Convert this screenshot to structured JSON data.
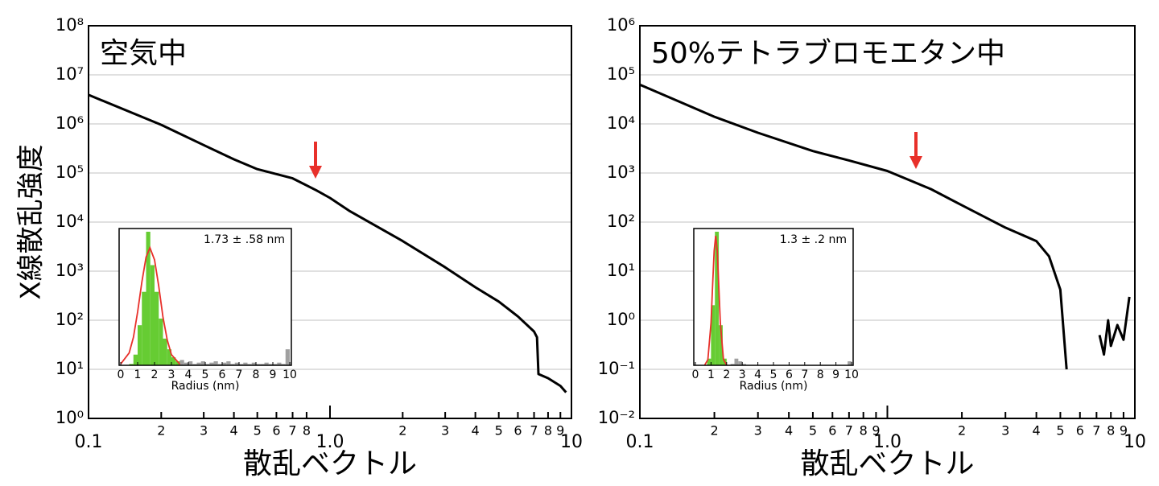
{
  "chart_data": [
    {
      "type": "line",
      "title": "空気中",
      "x_label": "散乱ベクトル",
      "y_label": "X線散乱強度",
      "xscale": "log",
      "yscale": "log",
      "grid": true,
      "xlim": [
        0.1,
        10
      ],
      "ylim": [
        1,
        100000000.0
      ],
      "xticks": [
        0.1,
        {
          "value": 0.2,
          "label": "2"
        },
        {
          "value": 0.3,
          "label": "3"
        },
        {
          "value": 0.4,
          "label": "4"
        },
        {
          "value": 0.5,
          "label": "5"
        },
        {
          "value": 0.6,
          "label": "6"
        },
        {
          "value": 0.7,
          "label": "7"
        },
        {
          "value": 0.8,
          "label": "8"
        },
        {
          "value": 1,
          "label": "1.0"
        },
        {
          "value": 2,
          "label": "2"
        },
        {
          "value": 3,
          "label": "3"
        },
        {
          "value": 4,
          "label": "4"
        },
        {
          "value": 5,
          "label": "5"
        },
        {
          "value": 6,
          "label": "6"
        },
        {
          "value": 7,
          "label": "7"
        },
        {
          "value": 8,
          "label": "8"
        },
        {
          "value": 9,
          "label": "9"
        },
        10
      ],
      "yticks": [
        {
          "value": 1,
          "label": "10⁰"
        },
        {
          "value": 10,
          "label": "10¹"
        },
        {
          "value": 100,
          "label": "10²"
        },
        {
          "value": 1000,
          "label": "10³"
        },
        {
          "value": 10000.0,
          "label": "10⁴"
        },
        {
          "value": 100000.0,
          "label": "10⁵"
        },
        {
          "value": 1000000.0,
          "label": "10⁶"
        },
        {
          "value": 10000000.0,
          "label": "10⁷"
        },
        {
          "value": 100000000.0,
          "label": "10⁸"
        }
      ],
      "series": [
        {
          "color": "#000000",
          "x": [
            0.1,
            0.2,
            0.3,
            0.4,
            0.5,
            0.7,
            0.88,
            1.0,
            1.2,
            2,
            3,
            4,
            5,
            6,
            7,
            7.2,
            7.3,
            8,
            9,
            9.5
          ],
          "values": [
            3900000,
            960000,
            370000,
            190000,
            120000,
            78000,
            44000,
            31000,
            17000,
            4100,
            1200,
            470,
            240,
            120,
            59,
            45,
            8,
            6.6,
            4.6,
            3.4
          ]
        }
      ],
      "inset": {
        "type": "histogram",
        "x_label": "Radius (nm)",
        "annotation": "1.73 ± .58 nm",
        "xlim": [
          0,
          10
        ],
        "ylim": [
          0,
          100
        ],
        "xticks": [
          0,
          1,
          2,
          3,
          4,
          5,
          6,
          7,
          8,
          9,
          10
        ],
        "bins": [
          0,
          0.25,
          0.5,
          0.75,
          1,
          1.25,
          1.5,
          1.75,
          2,
          2.25,
          2.5,
          2.75,
          3,
          3.25,
          3.5,
          3.75,
          4,
          4.25,
          4.5,
          4.75,
          5,
          5.25,
          5.5,
          5.75,
          6,
          6.25,
          6.5,
          6.75,
          7,
          7.25,
          7.5,
          7.75,
          8,
          8.25,
          8.5,
          8.75,
          9,
          9.25,
          9.5,
          9.75,
          10
        ],
        "counts": [
          0,
          0,
          1,
          8,
          30,
          55,
          100,
          75,
          55,
          35,
          20,
          12,
          6,
          3,
          4,
          2,
          3,
          1,
          2,
          3,
          1,
          2,
          3,
          1,
          2,
          3,
          1,
          2,
          1,
          2,
          1,
          2,
          1,
          1,
          2,
          1,
          1,
          2,
          1,
          12
        ],
        "colors": [
          "#66cc33",
          "#66cc33",
          "#66cc33",
          "#66cc33",
          "#66cc33",
          "#66cc33",
          "#66cc33",
          "#66cc33",
          "#66cc33",
          "#66cc33",
          "#66cc33",
          "#66cc33",
          "#66cc33",
          "#66cc33",
          "#a0a0a0",
          "#a0a0a0",
          "#a0a0a0",
          "#a0a0a0",
          "#a0a0a0",
          "#a0a0a0",
          "#a0a0a0",
          "#a0a0a0",
          "#a0a0a0",
          "#a0a0a0",
          "#a0a0a0",
          "#a0a0a0",
          "#a0a0a0",
          "#a0a0a0",
          "#a0a0a0",
          "#a0a0a0",
          "#a0a0a0",
          "#a0a0a0",
          "#a0a0a0",
          "#a0a0a0",
          "#a0a0a0",
          "#a0a0a0",
          "#a0a0a0",
          "#a0a0a0",
          "#a0a0a0",
          "#a0a0a0"
        ],
        "fit": {
          "color": "#e8302a",
          "x": [
            0,
            0.5,
            0.75,
            1,
            1.25,
            1.5,
            1.73,
            2,
            2.25,
            2.5,
            2.75,
            3,
            3.5
          ],
          "values": [
            1,
            9.3,
            21,
            40,
            62.5,
            81,
            88,
            79,
            59,
            36,
            19,
            8,
            0.8
          ]
        }
      }
    },
    {
      "type": "line",
      "title": "50%テトラブロモエタン中",
      "x_label": "散乱ベクトル",
      "xscale": "log",
      "yscale": "log",
      "grid": true,
      "xlim": [
        0.1,
        10
      ],
      "ylim": [
        0.01,
        1000000.0
      ],
      "xticks": [
        0.1,
        {
          "value": 0.2,
          "label": "2"
        },
        {
          "value": 0.3,
          "label": "3"
        },
        {
          "value": 0.4,
          "label": "4"
        },
        {
          "value": 0.5,
          "label": "5"
        },
        {
          "value": 0.6,
          "label": "6"
        },
        {
          "value": 0.7,
          "label": "7"
        },
        {
          "value": 0.8,
          "label": "8"
        },
        {
          "value": 0.9,
          "label": "9"
        },
        {
          "value": 1,
          "label": "1.0"
        },
        {
          "value": 2,
          "label": "2"
        },
        {
          "value": 3,
          "label": "3"
        },
        {
          "value": 4,
          "label": "4"
        },
        {
          "value": 5,
          "label": "5"
        },
        {
          "value": 6,
          "label": "6"
        },
        {
          "value": 7,
          "label": "7"
        },
        {
          "value": 8,
          "label": "8"
        },
        {
          "value": 9,
          "label": "9"
        },
        10
      ],
      "yticks": [
        {
          "value": 0.01,
          "label": "10⁻²"
        },
        {
          "value": 0.1,
          "label": "10⁻¹"
        },
        {
          "value": 1,
          "label": "10⁰"
        },
        {
          "value": 10,
          "label": "10¹"
        },
        {
          "value": 100,
          "label": "10²"
        },
        {
          "value": 1000,
          "label": "10³"
        },
        {
          "value": 10000.0,
          "label": "10⁴"
        },
        {
          "value": 100000.0,
          "label": "10⁵"
        },
        {
          "value": 1000000.0,
          "label": "10⁶"
        }
      ],
      "series": [
        {
          "color": "#000000",
          "x": [
            0.1,
            0.2,
            0.3,
            0.5,
            0.7,
            1.0,
            1.5,
            2,
            3,
            4,
            4.5,
            5,
            5.3,
            6,
            7.2,
            7.5,
            7.8,
            8,
            8.5,
            9,
            9.5
          ],
          "values": [
            63000,
            14000,
            6600,
            2800,
            1800,
            1100,
            470,
            220,
            77,
            41,
            20,
            4.2,
            0.1,
            null,
            0.5,
            0.2,
            1,
            0.3,
            0.8,
            0.4,
            3
          ]
        }
      ],
      "inset": {
        "type": "histogram",
        "x_label": "Radius (nm)",
        "annotation": "1.3 ± .2 nm",
        "xlim": [
          0,
          10
        ],
        "ylim": [
          0,
          100
        ],
        "xticks": [
          0,
          1,
          2,
          3,
          4,
          5,
          6,
          7,
          8,
          9,
          10
        ],
        "bins": [
          0,
          0.25,
          0.5,
          0.75,
          1,
          1.25,
          1.5,
          1.75,
          2,
          2.25,
          2.5,
          2.75,
          3,
          3.25,
          3.5,
          3.75,
          4,
          4.25,
          4.5,
          4.75,
          5,
          5.25,
          5.5,
          5.75,
          6,
          6.25,
          6.5,
          6.75,
          7,
          7.25,
          7.5,
          7.75,
          8,
          8.25,
          8.5,
          8.75,
          9,
          9.25,
          9.5,
          9.75,
          10
        ],
        "counts": [
          0,
          0,
          0,
          5,
          45,
          100,
          30,
          5,
          0,
          1,
          5,
          3,
          1,
          0,
          0,
          0,
          0,
          0,
          0,
          0,
          0,
          0,
          0,
          0,
          0,
          0,
          0,
          0,
          0,
          0,
          0,
          0,
          0,
          0,
          0,
          0,
          0,
          0,
          0,
          3
        ],
        "colors": [
          "#66cc33",
          "#66cc33",
          "#66cc33",
          "#66cc33",
          "#66cc33",
          "#66cc33",
          "#66cc33",
          "#66cc33",
          "#66cc33",
          "#a0a0a0",
          "#a0a0a0",
          "#a0a0a0",
          "#a0a0a0",
          "#a0a0a0",
          "#a0a0a0",
          "#a0a0a0",
          "#a0a0a0",
          "#a0a0a0",
          "#a0a0a0",
          "#a0a0a0",
          "#a0a0a0",
          "#a0a0a0",
          "#a0a0a0",
          "#a0a0a0",
          "#a0a0a0",
          "#a0a0a0",
          "#a0a0a0",
          "#a0a0a0",
          "#a0a0a0",
          "#a0a0a0",
          "#a0a0a0",
          "#a0a0a0",
          "#a0a0a0",
          "#a0a0a0",
          "#a0a0a0",
          "#a0a0a0",
          "#a0a0a0",
          "#a0a0a0",
          "#a0a0a0",
          "#a0a0a0"
        ],
        "fit": {
          "color": "#e8302a",
          "x": [
            0.6,
            0.8,
            1.0,
            1.1,
            1.2,
            1.3,
            1.4,
            1.5,
            1.6,
            1.8,
            2.0
          ],
          "values": [
            0.2,
            4.3,
            31.6,
            58.8,
            85.6,
            97,
            85.6,
            58.8,
            31.6,
            4.3,
            0.2
          ]
        }
      }
    }
  ]
}
